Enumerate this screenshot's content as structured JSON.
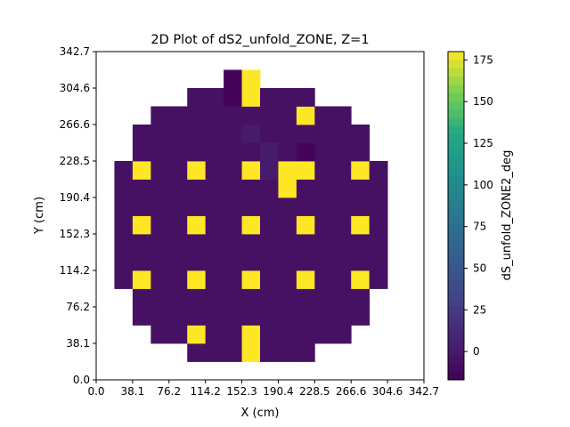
{
  "chart_data": {
    "type": "heatmap",
    "title": "2D Plot of dS2_unfold_ZONE, Z=1",
    "xlabel": "X (cm)",
    "ylabel": "Y (cm)",
    "colorbar_label": "dS_unfold_ZONE2_deg",
    "colormap": "viridis",
    "xlim": [
      0.0,
      342.7
    ],
    "ylim": [
      0.0,
      342.7
    ],
    "x_ticks": [
      "0.0",
      "38.1",
      "76.2",
      "114.2",
      "152.3",
      "190.4",
      "228.5",
      "266.6",
      "304.6",
      "342.7"
    ],
    "y_ticks": [
      "0.0",
      "38.1",
      "76.2",
      "114.2",
      "152.3",
      "190.4",
      "228.5",
      "266.6",
      "304.6",
      "342.7"
    ],
    "colorbar_range": [
      -17,
      180
    ],
    "colorbar_ticks": [
      "0",
      "25",
      "50",
      "75",
      "100",
      "125",
      "150",
      "175"
    ],
    "colorbar_tick_values": [
      0,
      25,
      50,
      75,
      100,
      125,
      150,
      175
    ],
    "grid": false,
    "cell_size_cm": 19.04,
    "grid_shape": [
      18,
      18
    ],
    "background_value": -5,
    "row_extents": [
      {
        "row": 1,
        "cols": [
          5,
          11
        ]
      },
      {
        "row": 2,
        "cols": [
          3,
          13
        ]
      },
      {
        "row": 3,
        "cols": [
          2,
          14
        ]
      },
      {
        "row": 4,
        "cols": [
          2,
          14
        ]
      },
      {
        "row": 5,
        "cols": [
          1,
          15
        ]
      },
      {
        "row": 6,
        "cols": [
          1,
          15
        ]
      },
      {
        "row": 7,
        "cols": [
          1,
          15
        ]
      },
      {
        "row": 8,
        "cols": [
          1,
          15
        ]
      },
      {
        "row": 9,
        "cols": [
          1,
          15
        ]
      },
      {
        "row": 10,
        "cols": [
          1,
          15
        ]
      },
      {
        "row": 11,
        "cols": [
          1,
          15
        ]
      },
      {
        "row": 12,
        "cols": [
          2,
          14
        ]
      },
      {
        "row": 13,
        "cols": [
          2,
          14
        ]
      },
      {
        "row": 14,
        "cols": [
          3,
          13
        ]
      },
      {
        "row": 15,
        "cols": [
          5,
          11
        ]
      }
    ],
    "special_cells": [
      {
        "row": 1,
        "col": 8,
        "value": 180
      },
      {
        "row": 2,
        "col": 5,
        "value": 180
      },
      {
        "row": 2,
        "col": 8,
        "value": 180
      },
      {
        "row": 5,
        "col": 2,
        "value": 180
      },
      {
        "row": 5,
        "col": 5,
        "value": 180
      },
      {
        "row": 5,
        "col": 8,
        "value": 180
      },
      {
        "row": 5,
        "col": 11,
        "value": 180
      },
      {
        "row": 5,
        "col": 14,
        "value": 180
      },
      {
        "row": 8,
        "col": 2,
        "value": 180
      },
      {
        "row": 8,
        "col": 5,
        "value": 180
      },
      {
        "row": 8,
        "col": 8,
        "value": 180
      },
      {
        "row": 8,
        "col": 11,
        "value": 180
      },
      {
        "row": 8,
        "col": 14,
        "value": 180
      },
      {
        "row": 10,
        "col": 10,
        "value": 180
      },
      {
        "row": 11,
        "col": 2,
        "value": 180
      },
      {
        "row": 11,
        "col": 5,
        "value": 180
      },
      {
        "row": 11,
        "col": 8,
        "value": 180
      },
      {
        "row": 11,
        "col": 10,
        "value": 180
      },
      {
        "row": 11,
        "col": 11,
        "value": 180
      },
      {
        "row": 11,
        "col": 14,
        "value": 180
      },
      {
        "row": 14,
        "col": 11,
        "value": 180
      },
      {
        "row": 15,
        "col": 8,
        "value": 180
      },
      {
        "row": 16,
        "col": 8,
        "value": 180
      },
      {
        "row": 15,
        "col": 7,
        "value": -15
      },
      {
        "row": 16,
        "col": 7,
        "value": -15
      },
      {
        "row": 12,
        "col": 11,
        "value": -15
      },
      {
        "row": 11,
        "col": 9,
        "value": 2
      },
      {
        "row": 12,
        "col": 9,
        "value": 2
      },
      {
        "row": 13,
        "col": 8,
        "value": 2
      }
    ]
  }
}
